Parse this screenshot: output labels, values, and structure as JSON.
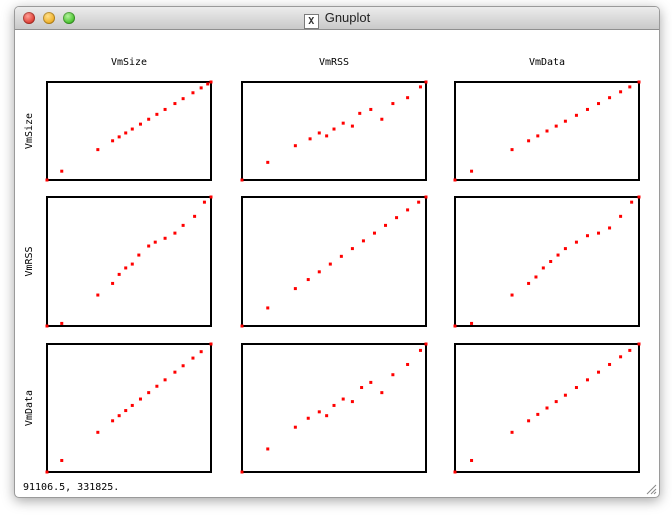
{
  "window": {
    "title": "Gnuplot",
    "icon": "x11-icon"
  },
  "status_text": "91106.5,  331825.",
  "colors": {
    "points": "#ff0000",
    "axes": "#000000"
  },
  "chart_data": {
    "type": "scatter",
    "layout": "3x3 scatterplot matrix",
    "variables": [
      "VmSize",
      "VmRSS",
      "VmData"
    ],
    "column_titles": [
      "VmSize",
      "VmRSS",
      "VmData"
    ],
    "row_titles": [
      "VmSize",
      "VmRSS",
      "VmData"
    ],
    "grid": false,
    "panels": [
      {
        "row": "VmSize",
        "col": "VmSize",
        "x": [
          0,
          0.09,
          0.31,
          0.4,
          0.44,
          0.48,
          0.52,
          0.57,
          0.62,
          0.67,
          0.72,
          0.78,
          0.83,
          0.89,
          0.94,
          0.98,
          1.0
        ],
        "y": [
          0,
          0.09,
          0.31,
          0.4,
          0.44,
          0.48,
          0.52,
          0.57,
          0.62,
          0.67,
          0.72,
          0.78,
          0.83,
          0.89,
          0.94,
          0.98,
          1.0
        ]
      },
      {
        "row": "VmSize",
        "col": "VmRSS",
        "x": [
          0,
          0.14,
          0.29,
          0.37,
          0.42,
          0.46,
          0.5,
          0.55,
          0.6,
          0.64,
          0.7,
          0.76,
          0.82,
          0.9,
          0.97,
          1.0
        ],
        "y": [
          0,
          0.18,
          0.35,
          0.42,
          0.48,
          0.45,
          0.52,
          0.58,
          0.55,
          0.68,
          0.72,
          0.62,
          0.78,
          0.84,
          0.95,
          1.0
        ]
      },
      {
        "row": "VmSize",
        "col": "VmData",
        "x": [
          0,
          0.09,
          0.31,
          0.4,
          0.45,
          0.5,
          0.55,
          0.6,
          0.66,
          0.72,
          0.78,
          0.84,
          0.9,
          0.95,
          1.0
        ],
        "y": [
          0,
          0.09,
          0.31,
          0.4,
          0.45,
          0.5,
          0.55,
          0.6,
          0.66,
          0.72,
          0.78,
          0.84,
          0.9,
          0.95,
          1.0
        ]
      },
      {
        "row": "VmRSS",
        "col": "VmSize",
        "x": [
          0,
          0.09,
          0.31,
          0.4,
          0.44,
          0.48,
          0.52,
          0.56,
          0.62,
          0.66,
          0.72,
          0.78,
          0.83,
          0.9,
          0.96,
          1.0
        ],
        "y": [
          0,
          0.02,
          0.24,
          0.33,
          0.4,
          0.45,
          0.48,
          0.55,
          0.62,
          0.65,
          0.68,
          0.72,
          0.78,
          0.85,
          0.96,
          1.0
        ]
      },
      {
        "row": "VmRSS",
        "col": "VmRSS",
        "x": [
          0,
          0.14,
          0.29,
          0.36,
          0.42,
          0.48,
          0.54,
          0.6,
          0.66,
          0.72,
          0.78,
          0.84,
          0.9,
          0.96,
          1.0
        ],
        "y": [
          0,
          0.14,
          0.29,
          0.36,
          0.42,
          0.48,
          0.54,
          0.6,
          0.66,
          0.72,
          0.78,
          0.84,
          0.9,
          0.96,
          1.0
        ]
      },
      {
        "row": "VmRSS",
        "col": "VmData",
        "x": [
          0,
          0.09,
          0.31,
          0.4,
          0.44,
          0.48,
          0.52,
          0.56,
          0.6,
          0.66,
          0.72,
          0.78,
          0.84,
          0.9,
          0.96,
          1.0
        ],
        "y": [
          0,
          0.02,
          0.24,
          0.33,
          0.38,
          0.45,
          0.5,
          0.55,
          0.6,
          0.65,
          0.7,
          0.72,
          0.76,
          0.85,
          0.96,
          1.0
        ]
      },
      {
        "row": "VmData",
        "col": "VmSize",
        "x": [
          0,
          0.09,
          0.31,
          0.4,
          0.44,
          0.48,
          0.52,
          0.57,
          0.62,
          0.67,
          0.72,
          0.78,
          0.83,
          0.89,
          0.94,
          1.0
        ],
        "y": [
          0,
          0.09,
          0.31,
          0.4,
          0.44,
          0.48,
          0.52,
          0.57,
          0.62,
          0.67,
          0.72,
          0.78,
          0.83,
          0.89,
          0.94,
          1.0
        ]
      },
      {
        "row": "VmData",
        "col": "VmRSS",
        "x": [
          0,
          0.14,
          0.29,
          0.36,
          0.42,
          0.46,
          0.5,
          0.55,
          0.6,
          0.65,
          0.7,
          0.76,
          0.82,
          0.9,
          0.97,
          1.0
        ],
        "y": [
          0,
          0.18,
          0.35,
          0.42,
          0.47,
          0.44,
          0.52,
          0.57,
          0.55,
          0.66,
          0.7,
          0.62,
          0.76,
          0.84,
          0.95,
          1.0
        ]
      },
      {
        "row": "VmData",
        "col": "VmData",
        "x": [
          0,
          0.09,
          0.31,
          0.4,
          0.45,
          0.5,
          0.55,
          0.6,
          0.66,
          0.72,
          0.78,
          0.84,
          0.9,
          0.95,
          1.0
        ],
        "y": [
          0,
          0.09,
          0.31,
          0.4,
          0.45,
          0.5,
          0.55,
          0.6,
          0.66,
          0.72,
          0.78,
          0.84,
          0.9,
          0.95,
          1.0
        ]
      }
    ]
  }
}
